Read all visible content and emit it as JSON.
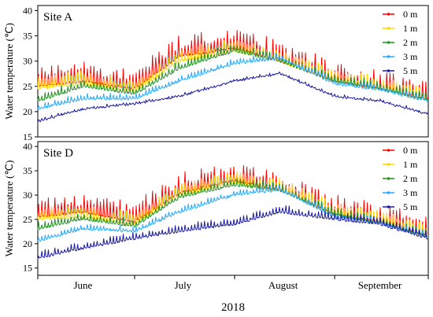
{
  "chart_data": [
    {
      "type": "line",
      "panel_label": "Site A",
      "ylabel": "Water temperature (℃)",
      "ylim": [
        15,
        41
      ],
      "yticks": [
        "15",
        "20",
        "25",
        "30",
        "35",
        "40"
      ],
      "grid": false,
      "legend_position": "top-right",
      "series": [
        {
          "name": "0 m",
          "color": "#ff0000",
          "x": [
            "2018-06-01",
            "2018-06-15",
            "2018-07-01",
            "2018-07-15",
            "2018-08-01",
            "2018-08-15",
            "2018-09-01",
            "2018-09-15",
            "2018-09-30"
          ],
          "y": [
            25.0,
            26.0,
            24.5,
            31.0,
            32.5,
            30.0,
            26.0,
            24.5,
            22.5
          ],
          "spike": 4.0
        },
        {
          "name": "1 m",
          "color": "#ffd700",
          "x": [
            "2018-06-01",
            "2018-06-15",
            "2018-07-01",
            "2018-07-15",
            "2018-08-01",
            "2018-08-15",
            "2018-09-01",
            "2018-09-15",
            "2018-09-30"
          ],
          "y": [
            24.5,
            25.5,
            24.0,
            30.0,
            32.0,
            30.0,
            26.0,
            24.5,
            22.3
          ],
          "spike": 2.5
        },
        {
          "name": "2 m",
          "color": "#1f8f1f",
          "x": [
            "2018-06-01",
            "2018-06-15",
            "2018-07-01",
            "2018-07-15",
            "2018-08-01",
            "2018-08-15",
            "2018-09-01",
            "2018-09-15",
            "2018-09-30"
          ],
          "y": [
            22.0,
            25.0,
            23.5,
            28.5,
            32.0,
            30.0,
            26.0,
            24.5,
            22.3
          ],
          "spike": 1.5
        },
        {
          "name": "3 m",
          "color": "#22aaff",
          "x": [
            "2018-06-01",
            "2018-06-15",
            "2018-07-01",
            "2018-07-15",
            "2018-08-01",
            "2018-08-15",
            "2018-09-01",
            "2018-09-15",
            "2018-09-30"
          ],
          "y": [
            20.5,
            22.5,
            22.5,
            26.0,
            29.5,
            30.5,
            25.5,
            24.3,
            22.0
          ],
          "spike": 1.0
        },
        {
          "name": "5 m",
          "color": "#1a1aa0",
          "x": [
            "2018-06-01",
            "2018-06-15",
            "2018-07-01",
            "2018-07-15",
            "2018-08-01",
            "2018-08-15",
            "2018-09-01",
            "2018-09-15",
            "2018-09-30"
          ],
          "y": [
            18.0,
            20.5,
            21.5,
            23.0,
            26.0,
            27.5,
            23.0,
            22.0,
            19.5
          ],
          "spike": 0.4
        }
      ]
    },
    {
      "type": "line",
      "panel_label": "Site D",
      "ylabel": "Water temperature (℃)",
      "ylim": [
        13.5,
        41
      ],
      "yticks": [
        "15",
        "20",
        "25",
        "30",
        "35",
        "40"
      ],
      "grid": false,
      "legend_position": "top-right",
      "series": [
        {
          "name": "0 m",
          "color": "#ff0000",
          "x": [
            "2018-06-01",
            "2018-06-15",
            "2018-07-01",
            "2018-07-15",
            "2018-08-01",
            "2018-08-15",
            "2018-09-01",
            "2018-09-15",
            "2018-09-30"
          ],
          "y": [
            25.5,
            26.5,
            24.5,
            30.5,
            33.0,
            31.0,
            26.0,
            24.5,
            21.5
          ],
          "spike": 4.0
        },
        {
          "name": "1 m",
          "color": "#ffd700",
          "x": [
            "2018-06-01",
            "2018-06-15",
            "2018-07-01",
            "2018-07-15",
            "2018-08-01",
            "2018-08-15",
            "2018-09-01",
            "2018-09-15",
            "2018-09-30"
          ],
          "y": [
            25.0,
            25.5,
            24.0,
            30.0,
            32.5,
            31.0,
            26.0,
            24.5,
            21.5
          ],
          "spike": 2.5
        },
        {
          "name": "2 m",
          "color": "#1f8f1f",
          "x": [
            "2018-06-01",
            "2018-06-15",
            "2018-07-01",
            "2018-07-15",
            "2018-08-01",
            "2018-08-15",
            "2018-09-01",
            "2018-09-15",
            "2018-09-30"
          ],
          "y": [
            23.0,
            25.0,
            23.5,
            29.5,
            32.0,
            31.0,
            26.0,
            24.3,
            21.5
          ],
          "spike": 1.5
        },
        {
          "name": "3 m",
          "color": "#22aaff",
          "x": [
            "2018-06-01",
            "2018-06-15",
            "2018-07-01",
            "2018-07-15",
            "2018-08-01",
            "2018-08-15",
            "2018-09-01",
            "2018-09-15",
            "2018-09-30"
          ],
          "y": [
            20.5,
            23.0,
            22.5,
            26.5,
            30.0,
            31.0,
            25.5,
            24.3,
            21.3
          ],
          "spike": 1.0
        },
        {
          "name": "5 m",
          "color": "#1a1aa0",
          "x": [
            "2018-06-01",
            "2018-06-15",
            "2018-07-01",
            "2018-07-15",
            "2018-08-01",
            "2018-08-15",
            "2018-09-01",
            "2018-09-15",
            "2018-09-30"
          ],
          "y": [
            17.0,
            19.0,
            21.0,
            22.5,
            24.0,
            26.5,
            25.0,
            24.0,
            21.0
          ],
          "spike": 1.5
        }
      ]
    }
  ],
  "x_axis": {
    "start": "2018-06-01",
    "end": "2018-09-30",
    "month_ticks": [
      "2018-06-01",
      "2018-07-01",
      "2018-08-01",
      "2018-09-01",
      "2018-09-30"
    ],
    "month_labels": [
      {
        "text": "June",
        "at": "2018-06-15"
      },
      {
        "text": "July",
        "at": "2018-07-16"
      },
      {
        "text": "August",
        "at": "2018-08-16"
      },
      {
        "text": "September",
        "at": "2018-09-15"
      }
    ],
    "year_label": "2018"
  }
}
